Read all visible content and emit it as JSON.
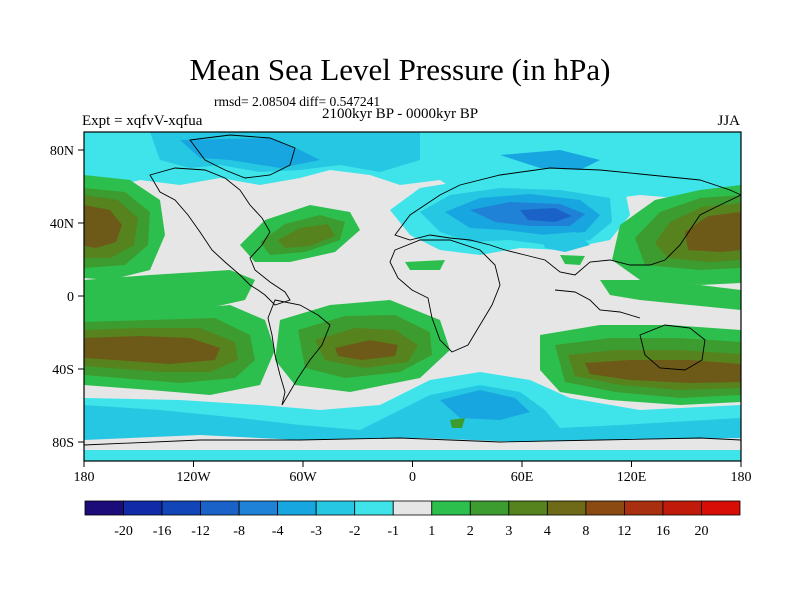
{
  "title": "Mean Sea Level Pressure (in hPa)",
  "stats": "rmsd= 2.08504 diff= 0.547241",
  "subtitle": "2100kyr BP - 0000kyr BP",
  "experiment": "Expt = xqfvV-xqfua",
  "season": "JJA",
  "axes": {
    "x_ticks": [
      "180",
      "120W",
      "60W",
      "0",
      "60E",
      "120E",
      "180"
    ],
    "y_ticks": [
      "80N",
      "40N",
      "0",
      "40S",
      "80S"
    ]
  },
  "colorbar": {
    "labels": [
      "-20",
      "-16",
      "-12",
      "-8",
      "-4",
      "-3",
      "-2",
      "-1",
      "1",
      "2",
      "3",
      "4",
      "8",
      "12",
      "16",
      "20"
    ],
    "colors": [
      "#1c0c7a",
      "#102aa8",
      "#1246b8",
      "#1a62c8",
      "#1f82d6",
      "#17a6e0",
      "#26c7e2",
      "#3ee4ea",
      "#e6e6e6",
      "#2dbf4e",
      "#3d9c2f",
      "#56831e",
      "#6e6a18",
      "#8a4a12",
      "#a83010",
      "#c01a0a",
      "#d80e06"
    ]
  },
  "colors": {
    "neutral": "#e6e6e6",
    "green": "#2dbf4e",
    "dark_green": "#3d9c2f",
    "olive": "#56831e",
    "brown": "#6e5a18",
    "dark_brown": "#7a4614",
    "cyan": "#3ee4ea",
    "light_blue": "#26c7e2",
    "mid_blue": "#17a6e0",
    "blue": "#1f82d6",
    "deep_blue": "#1a62c8"
  }
}
